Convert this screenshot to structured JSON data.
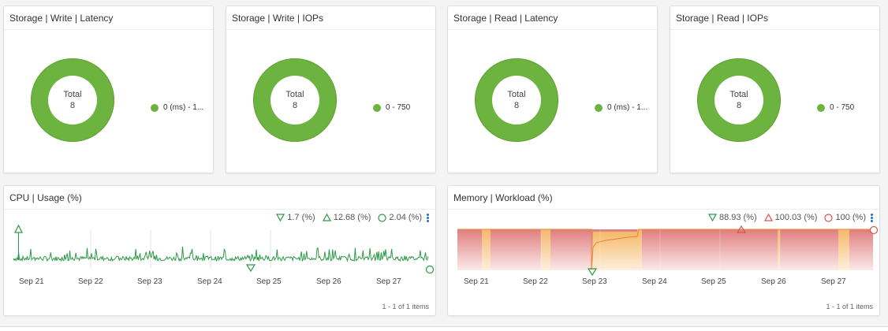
{
  "donuts": [
    {
      "title": "Storage | Write | Latency",
      "total_label": "Total",
      "total": "8",
      "legend": "0 (ms) - 1...",
      "color": "#6db33f"
    },
    {
      "title": "Storage | Write | IOPs",
      "total_label": "Total",
      "total": "8",
      "legend": "0 - 750",
      "color": "#6db33f"
    },
    {
      "title": "Storage | Read | Latency",
      "total_label": "Total",
      "total": "8",
      "legend": "0 (ms) - 1...",
      "color": "#6db33f"
    },
    {
      "title": "Storage | Read | IOPs",
      "total_label": "Total",
      "total": "8",
      "legend": "0 - 750",
      "color": "#6db33f"
    }
  ],
  "cpu": {
    "title": "CPU | Usage (%)",
    "min": "1.7 (%)",
    "max": "12.68 (%)",
    "current": "2.04 (%)",
    "dates": [
      "Sep 21",
      "Sep 22",
      "Sep 23",
      "Sep 24",
      "Sep 25",
      "Sep 26",
      "Sep 27"
    ],
    "items": "1 - 1 of 1 items",
    "line_color": "#2e9a47"
  },
  "memory": {
    "title": "Memory | Workload (%)",
    "min": "88.93 (%)",
    "max": "100.03 (%)",
    "current": "100 (%)",
    "dates": [
      "Sep 21",
      "Sep 22",
      "Sep 23",
      "Sep 24",
      "Sep 25",
      "Sep 26",
      "Sep 27"
    ],
    "items": "1 - 1 of 1 items",
    "critical_color": "#e07e7e",
    "warning_color": "#f5b86b",
    "line_color": "#e8862c"
  }
}
